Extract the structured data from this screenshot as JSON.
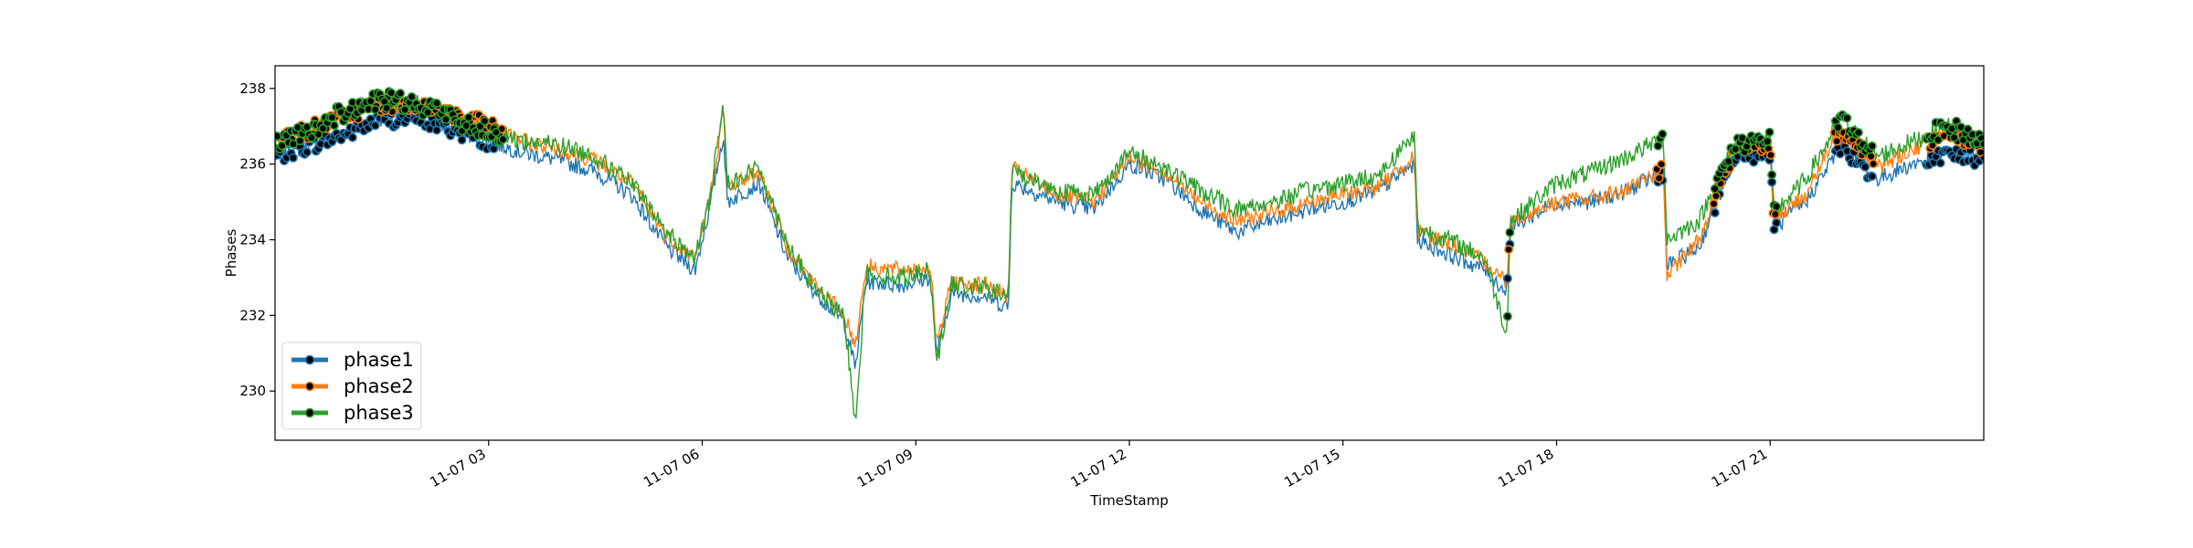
{
  "chart_data": {
    "type": "line",
    "xlabel": "TimeStamp",
    "ylabel": "Phases",
    "x_range": [
      "11-07 00:00",
      "23:59"
    ],
    "ylim": [
      228.7,
      238.6
    ],
    "x_ticks": [
      {
        "label": "11-07 03",
        "hour": 3
      },
      {
        "label": "11-07 06",
        "hour": 6
      },
      {
        "label": "11-07 09",
        "hour": 9
      },
      {
        "label": "11-07 12",
        "hour": 12
      },
      {
        "label": "11-07 15",
        "hour": 15
      },
      {
        "label": "11-07 18",
        "hour": 18
      },
      {
        "label": "11-07 21",
        "hour": 21
      }
    ],
    "y_ticks": [
      230,
      232,
      234,
      236,
      238
    ],
    "legend": {
      "placement": "lower-left"
    },
    "grid": false,
    "series": [
      {
        "name": "phase1",
        "color": "#1f77b4",
        "offset": -0.3,
        "noise": 0.22,
        "points": [
          [
            0,
            236.2
          ],
          [
            0.5,
            236.5
          ],
          [
            1,
            236.8
          ],
          [
            1.5,
            237.2
          ],
          [
            2,
            237.2
          ],
          [
            2.5,
            236.9
          ],
          [
            3,
            236.6
          ],
          [
            3.5,
            236.3
          ],
          [
            4,
            236.1
          ],
          [
            4.5,
            235.8
          ],
          [
            5,
            235.2
          ],
          [
            5.5,
            233.8
          ],
          [
            5.9,
            233.2
          ],
          [
            6.1,
            234.8
          ],
          [
            6.3,
            236.8
          ],
          [
            6.35,
            235
          ],
          [
            6.8,
            235.5
          ],
          [
            7.2,
            233.5
          ],
          [
            7.5,
            232.8
          ],
          [
            8,
            231.8
          ],
          [
            8.15,
            230.6
          ],
          [
            8.3,
            232.9
          ],
          [
            8.8,
            232.8
          ],
          [
            9.2,
            233
          ],
          [
            9.3,
            231
          ],
          [
            9.5,
            232.6
          ],
          [
            10,
            232.5
          ],
          [
            10.3,
            232.2
          ],
          [
            10.35,
            235.5
          ],
          [
            11,
            235
          ],
          [
            11.5,
            234.8
          ],
          [
            12,
            236
          ],
          [
            12.5,
            235.6
          ],
          [
            13,
            234.8
          ],
          [
            13.5,
            234.2
          ],
          [
            14,
            234.5
          ],
          [
            14.5,
            234.8
          ],
          [
            15,
            235
          ],
          [
            15.5,
            235.3
          ],
          [
            16,
            236
          ],
          [
            16.05,
            234
          ],
          [
            16.5,
            233.6
          ],
          [
            17,
            233.2
          ],
          [
            17.3,
            232.6
          ],
          [
            17.35,
            234.3
          ],
          [
            18,
            235
          ],
          [
            18.5,
            235
          ],
          [
            19,
            235.3
          ],
          [
            19.5,
            235.8
          ],
          [
            19.55,
            233.3
          ],
          [
            20,
            233.8
          ],
          [
            20.5,
            236.2
          ],
          [
            21,
            236.3
          ],
          [
            21.05,
            234.3
          ],
          [
            21.5,
            235
          ],
          [
            22,
            236.5
          ],
          [
            22.5,
            235.6
          ],
          [
            23,
            236
          ],
          [
            23.5,
            236.3
          ],
          [
            24,
            236.1
          ]
        ]
      },
      {
        "name": "phase2",
        "color": "#ff7f0e",
        "offset": 0.1,
        "noise": 0.22,
        "points": [
          [
            0,
            236.6
          ],
          [
            0.5,
            236.9
          ],
          [
            1,
            237.3
          ],
          [
            1.5,
            237.6
          ],
          [
            2,
            237.6
          ],
          [
            2.5,
            237.3
          ],
          [
            3,
            237
          ],
          [
            3.5,
            236.6
          ],
          [
            4,
            236.4
          ],
          [
            4.5,
            236.1
          ],
          [
            5,
            235.5
          ],
          [
            5.5,
            234.1
          ],
          [
            5.9,
            233.5
          ],
          [
            6.1,
            235
          ],
          [
            6.3,
            237.4
          ],
          [
            6.35,
            235.4
          ],
          [
            6.8,
            235.8
          ],
          [
            7.2,
            233.8
          ],
          [
            7.5,
            233
          ],
          [
            8,
            232
          ],
          [
            8.15,
            231.2
          ],
          [
            8.3,
            233.3
          ],
          [
            8.8,
            233.2
          ],
          [
            9.2,
            233.3
          ],
          [
            9.3,
            231.2
          ],
          [
            9.5,
            232.9
          ],
          [
            10,
            232.8
          ],
          [
            10.3,
            232.5
          ],
          [
            10.35,
            235.9
          ],
          [
            11,
            235.2
          ],
          [
            11.5,
            235
          ],
          [
            12,
            236.2
          ],
          [
            12.5,
            235.8
          ],
          [
            13,
            235
          ],
          [
            13.5,
            234.5
          ],
          [
            14,
            234.7
          ],
          [
            14.5,
            235
          ],
          [
            15,
            235.2
          ],
          [
            15.5,
            235.4
          ],
          [
            16,
            236.2
          ],
          [
            16.05,
            234.2
          ],
          [
            16.5,
            233.9
          ],
          [
            17,
            233.4
          ],
          [
            17.3,
            232.9
          ],
          [
            17.35,
            234.5
          ],
          [
            18,
            235
          ],
          [
            18.5,
            235.1
          ],
          [
            19,
            235.3
          ],
          [
            19.5,
            235.9
          ],
          [
            19.55,
            233
          ],
          [
            20,
            234
          ],
          [
            20.5,
            236.4
          ],
          [
            21,
            236.5
          ],
          [
            21.05,
            234.5
          ],
          [
            21.5,
            235.2
          ],
          [
            22,
            237
          ],
          [
            22.5,
            235.9
          ],
          [
            23,
            236.4
          ],
          [
            23.5,
            236.8
          ],
          [
            24,
            236.5
          ]
        ]
      },
      {
        "name": "phase3",
        "color": "#2ca02c",
        "offset": 0.2,
        "noise": 0.25,
        "points": [
          [
            0,
            236.5
          ],
          [
            0.5,
            236.9
          ],
          [
            1,
            237.4
          ],
          [
            1.5,
            237.7
          ],
          [
            2,
            237.6
          ],
          [
            2.5,
            237.2
          ],
          [
            3,
            236.9
          ],
          [
            3.5,
            236.6
          ],
          [
            4,
            236.5
          ],
          [
            4.5,
            236.2
          ],
          [
            5,
            235.5
          ],
          [
            5.5,
            234.2
          ],
          [
            5.9,
            233.5
          ],
          [
            6.1,
            235
          ],
          [
            6.3,
            237.6
          ],
          [
            6.35,
            235.5
          ],
          [
            6.8,
            235.9
          ],
          [
            7.2,
            233.9
          ],
          [
            7.5,
            232.9
          ],
          [
            8,
            231.9
          ],
          [
            8.15,
            229.2
          ],
          [
            8.3,
            233.1
          ],
          [
            8.8,
            233
          ],
          [
            9.2,
            233.2
          ],
          [
            9.3,
            230.8
          ],
          [
            9.5,
            232.8
          ],
          [
            10,
            232.7
          ],
          [
            10.3,
            232.5
          ],
          [
            10.35,
            235.8
          ],
          [
            11,
            235.3
          ],
          [
            11.5,
            235.2
          ],
          [
            12,
            236.3
          ],
          [
            12.5,
            235.9
          ],
          [
            13,
            235.3
          ],
          [
            13.5,
            234.8
          ],
          [
            14,
            235
          ],
          [
            14.5,
            235.3
          ],
          [
            15,
            235.5
          ],
          [
            15.5,
            235.7
          ],
          [
            16,
            236.8
          ],
          [
            16.05,
            234.3
          ],
          [
            16.5,
            234
          ],
          [
            17,
            233.5
          ],
          [
            17.3,
            231.5
          ],
          [
            17.35,
            234.5
          ],
          [
            18,
            235.5
          ],
          [
            18.5,
            235.8
          ],
          [
            19,
            236.2
          ],
          [
            19.5,
            236.7
          ],
          [
            19.55,
            234
          ],
          [
            20,
            234.5
          ],
          [
            20.5,
            236.5
          ],
          [
            21,
            236.7
          ],
          [
            21.05,
            234.7
          ],
          [
            21.5,
            235.6
          ],
          [
            22,
            237.2
          ],
          [
            22.5,
            236.2
          ],
          [
            23,
            236.6
          ],
          [
            23.5,
            237
          ],
          [
            24,
            236.6
          ]
        ]
      }
    ],
    "anomaly_marker": {
      "fill": "#000000",
      "ranges": [
        [
          0,
          3.2
        ],
        [
          17.3,
          17.35
        ],
        [
          19.4,
          19.5
        ],
        [
          20.2,
          21.1
        ],
        [
          21.9,
          22.45
        ],
        [
          23.2,
          24
        ]
      ]
    }
  }
}
